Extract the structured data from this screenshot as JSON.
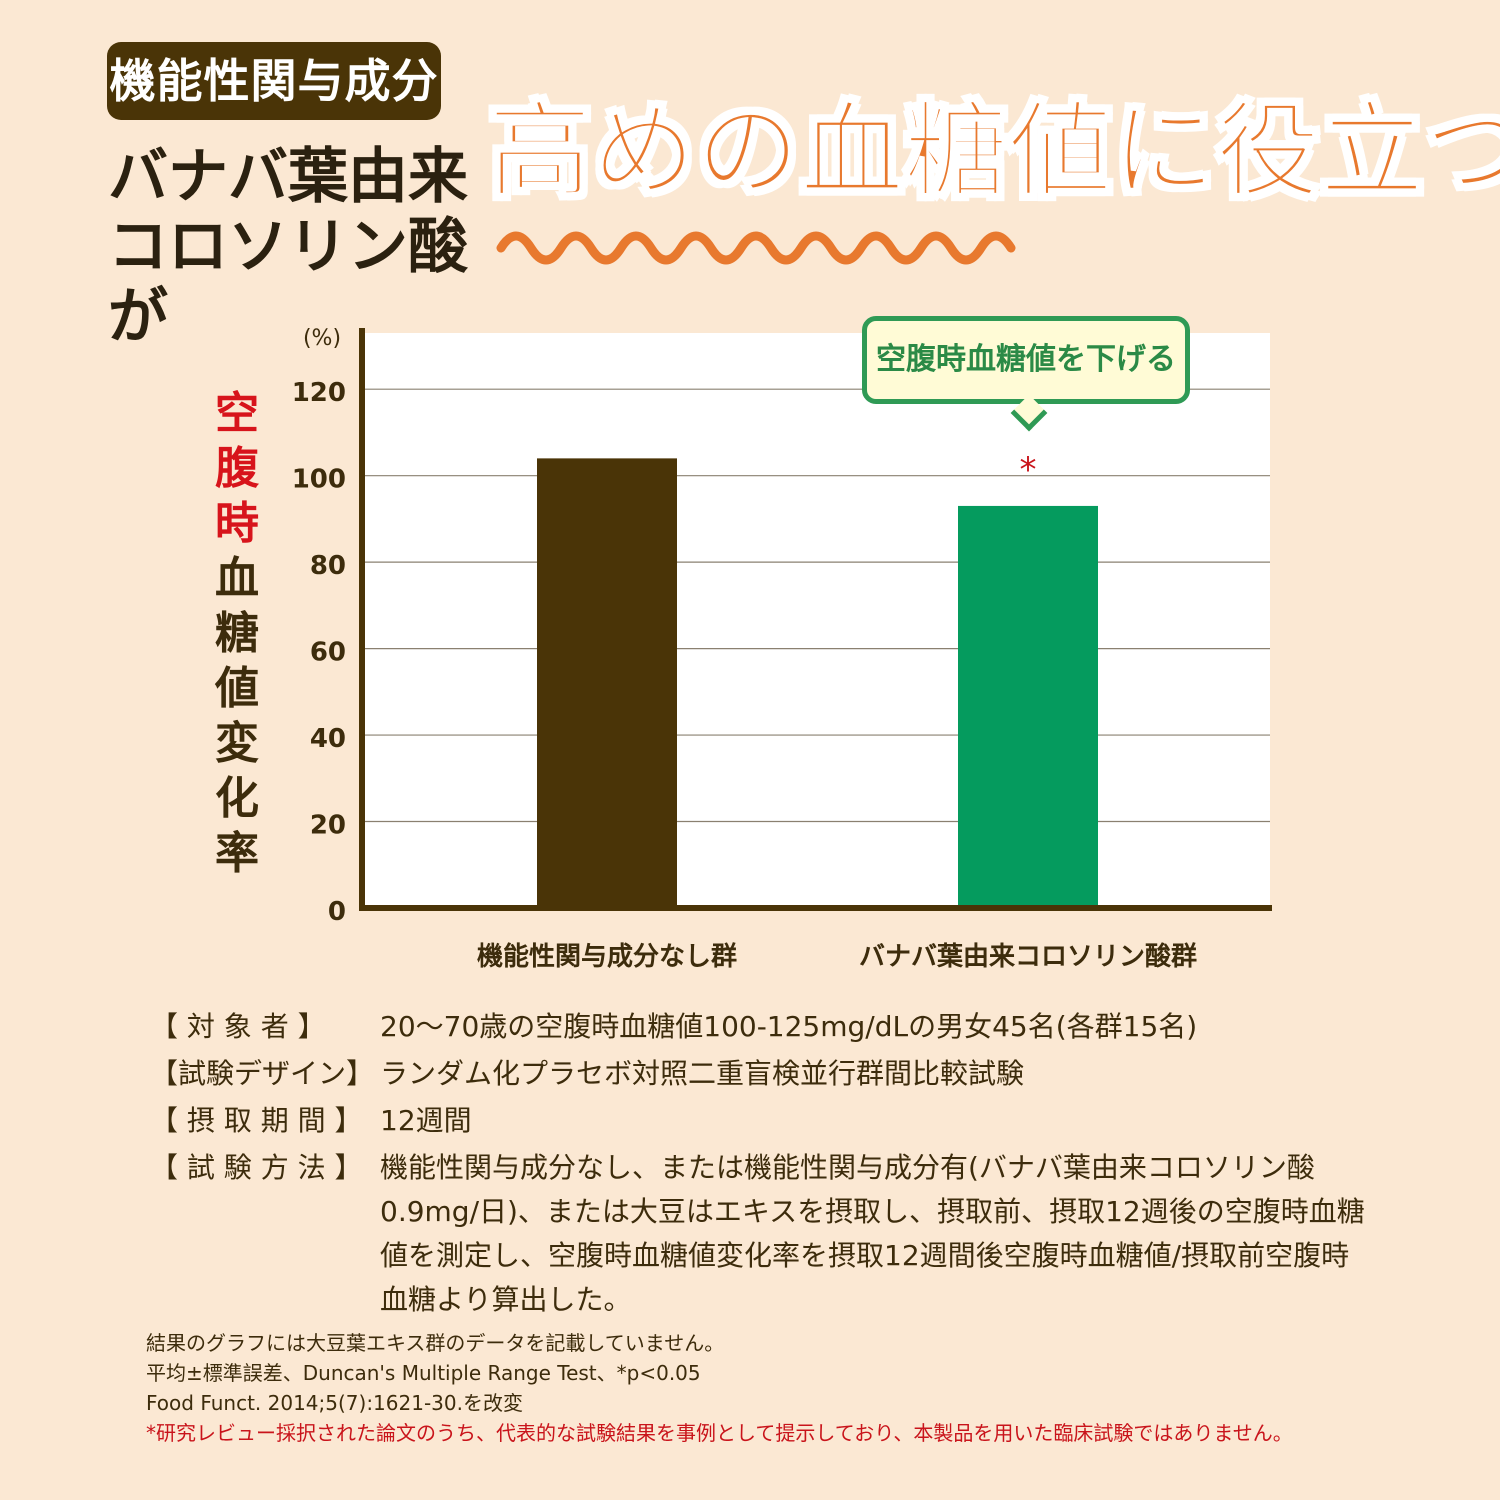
{
  "header": {
    "badge": "機能性関与成分",
    "subtitle_line1": "バナバ葉由来",
    "subtitle_line2": "コロソリン酸が",
    "headline": "高めの血糖値に役立つ!"
  },
  "y_axis_label": {
    "red_part": "空腹時",
    "dark_part": "血糖値変化率"
  },
  "callout": "空腹時血糖値を下げる",
  "colors": {
    "background": "#fbe8d3",
    "control_bar": "#4a3407",
    "treatment_bar": "#059b5e",
    "headline": "#e8792e",
    "accent_red": "#d7141b",
    "callout_border": "#2f9a55"
  },
  "chart_data": {
    "type": "bar",
    "categories": [
      "機能性関与成分なし群",
      "バナバ葉由来コロソリン酸群"
    ],
    "values": [
      104,
      93
    ],
    "bar_colors": [
      "#4a3407",
      "#059b5e"
    ],
    "ylim": [
      0,
      120
    ],
    "yticks": [
      0,
      20,
      40,
      60,
      80,
      100,
      120
    ],
    "ylabel": "空腹時血糖値変化率",
    "yunit": "(%)",
    "grid": true,
    "significance_marks": [
      "",
      "*"
    ]
  },
  "study_info": [
    {
      "key": "【 対 象 者 】",
      "value": "20～70歳の空腹時血糖値100-125mg/dLの男女45名(各群15名)"
    },
    {
      "key": "【試験デザイン】",
      "value": "ランダム化プラセボ対照二重盲検並行群間比較試験"
    },
    {
      "key": "【 摂 取 期 間 】",
      "value": "12週間"
    },
    {
      "key": "【 試 験 方 法 】",
      "value": "機能性関与成分なし、または機能性関与成分有(バナバ葉由来コロソリン酸0.9mg/日)、または大豆はエキスを摂取し、摂取前、摂取12週後の空腹時血糖値を測定し、空腹時血糖値変化率を摂取12週間後空腹時血糖値/摂取前空腹時血糖より算出した。"
    }
  ],
  "notes": {
    "line1": "結果のグラフには大豆葉エキス群のデータを記載していません。",
    "line2": "平均±標準誤差、Duncan's Multiple Range Test、*p<0.05",
    "line3": "Food Funct. 2014;5(7):1621-30.を改変",
    "line4": "*研究レビュー採択された論文のうち、代表的な試験結果を事例として提示しており、本製品を用いた臨床試験ではありません。"
  }
}
